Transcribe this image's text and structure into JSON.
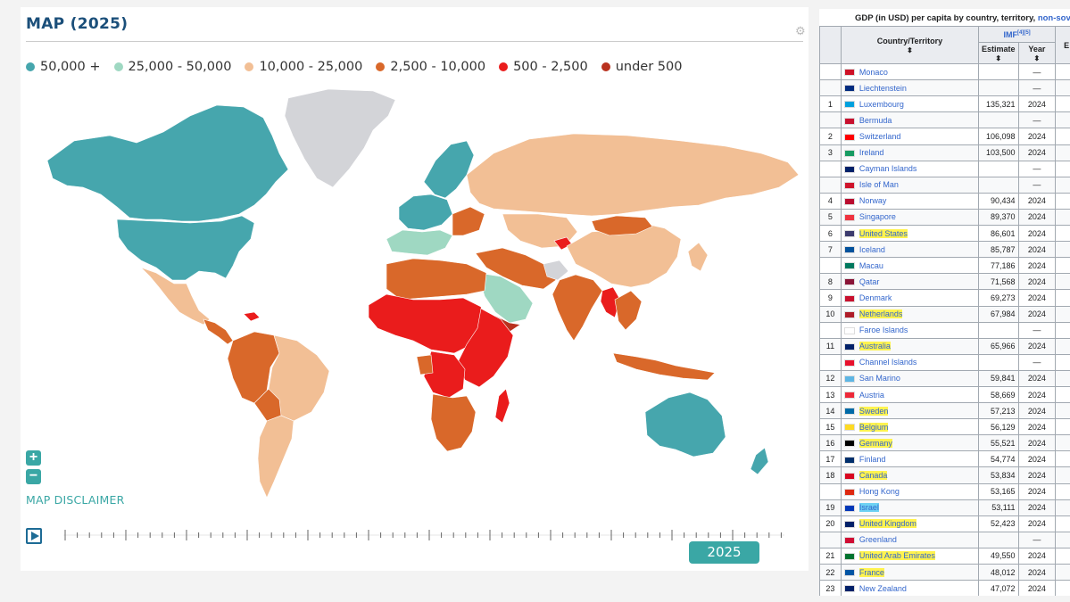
{
  "map": {
    "title": "MAP (2025)",
    "legend": [
      {
        "label": "50,000 +",
        "color": "#46a6ad"
      },
      {
        "label": "25,000 - 50,000",
        "color": "#9fd8c2"
      },
      {
        "label": "10,000 - 25,000",
        "color": "#f2bf95"
      },
      {
        "label": "2,500 - 10,000",
        "color": "#d9682a"
      },
      {
        "label": "500 - 2,500",
        "color": "#ea1c1c"
      },
      {
        "label": "under 500",
        "color": "#b9311e"
      }
    ],
    "no_data_color": "#d3d4d8",
    "zoom_in": "+",
    "zoom_out": "−",
    "disclaimer": "MAP DISCLAIMER",
    "year": "2025"
  },
  "wiki": {
    "caption_prefix": "GDP (in USD) per capita by country, territory,",
    "caption_link": "non-sover",
    "header_source": "IMF",
    "header_source_ref": "[4][5]",
    "col_country": "Country/Territory",
    "col_estimate": "Estimate",
    "col_year": "Year",
    "col_extra": "E",
    "rows": [
      {
        "rank": "",
        "country": "Monaco",
        "estimate": "",
        "year": "—",
        "flag": "#ce1126"
      },
      {
        "rank": "",
        "country": "Liechtenstein",
        "estimate": "",
        "year": "—",
        "flag": "#002b7f"
      },
      {
        "rank": "1",
        "country": "Luxembourg",
        "estimate": "135,321",
        "year": "2024",
        "flag": "#00a1de"
      },
      {
        "rank": "",
        "country": "Bermuda",
        "estimate": "",
        "year": "—",
        "flag": "#c8102e"
      },
      {
        "rank": "2",
        "country": "Switzerland",
        "estimate": "106,098",
        "year": "2024",
        "flag": "#ff0000"
      },
      {
        "rank": "3",
        "country": "Ireland",
        "estimate": "103,500",
        "year": "2024",
        "flag": "#169b62"
      },
      {
        "rank": "",
        "country": "Cayman Islands",
        "estimate": "",
        "year": "—",
        "flag": "#012169"
      },
      {
        "rank": "",
        "country": "Isle of Man",
        "estimate": "",
        "year": "—",
        "flag": "#cf142b"
      },
      {
        "rank": "4",
        "country": "Norway",
        "estimate": "90,434",
        "year": "2024",
        "flag": "#ba0c2f"
      },
      {
        "rank": "5",
        "country": "Singapore",
        "estimate": "89,370",
        "year": "2024",
        "flag": "#ef3340"
      },
      {
        "rank": "6",
        "country": "United States",
        "estimate": "86,601",
        "year": "2024",
        "flag": "#3c3b6e"
      },
      {
        "rank": "7",
        "country": "Iceland",
        "estimate": "85,787",
        "year": "2024",
        "flag": "#02529c"
      },
      {
        "rank": "",
        "country": "Macau",
        "estimate": "77,186",
        "year": "2024",
        "flag": "#00785e"
      },
      {
        "rank": "8",
        "country": "Qatar",
        "estimate": "71,568",
        "year": "2024",
        "flag": "#8a1538"
      },
      {
        "rank": "9",
        "country": "Denmark",
        "estimate": "69,273",
        "year": "2024",
        "flag": "#c8102e"
      },
      {
        "rank": "10",
        "country": "Netherlands",
        "estimate": "67,984",
        "year": "2024",
        "flag": "#ae1c28"
      },
      {
        "rank": "",
        "country": "Faroe Islands",
        "estimate": "",
        "year": "—",
        "flag": "#ffffff"
      },
      {
        "rank": "11",
        "country": "Australia",
        "estimate": "65,966",
        "year": "2024",
        "flag": "#012169"
      },
      {
        "rank": "",
        "country": "Channel Islands",
        "estimate": "",
        "year": "—",
        "flag": "#e8112d"
      },
      {
        "rank": "12",
        "country": "San Marino",
        "estimate": "59,841",
        "year": "2024",
        "flag": "#5eb6e4"
      },
      {
        "rank": "13",
        "country": "Austria",
        "estimate": "58,669",
        "year": "2024",
        "flag": "#ed2939"
      },
      {
        "rank": "14",
        "country": "Sweden",
        "estimate": "57,213",
        "year": "2024",
        "flag": "#006aa7"
      },
      {
        "rank": "15",
        "country": "Belgium",
        "estimate": "56,129",
        "year": "2024",
        "flag": "#fdda24"
      },
      {
        "rank": "16",
        "country": "Germany",
        "estimate": "55,521",
        "year": "2024",
        "flag": "#000000"
      },
      {
        "rank": "17",
        "country": "Finland",
        "estimate": "54,774",
        "year": "2024",
        "flag": "#002f6c"
      },
      {
        "rank": "18",
        "country": "Canada",
        "estimate": "53,834",
        "year": "2024",
        "flag": "#d80621"
      },
      {
        "rank": "",
        "country": "Hong Kong",
        "estimate": "53,165",
        "year": "2024",
        "flag": "#de2910"
      },
      {
        "rank": "19",
        "country": "Israel",
        "estimate": "53,111",
        "year": "2024",
        "flag": "#0038b8"
      },
      {
        "rank": "20",
        "country": "United Kingdom",
        "estimate": "52,423",
        "year": "2024",
        "flag": "#012169"
      },
      {
        "rank": "",
        "country": "Greenland",
        "estimate": "",
        "year": "—",
        "flag": "#d00c33"
      },
      {
        "rank": "21",
        "country": "United Arab Emirates",
        "estimate": "49,550",
        "year": "2024",
        "flag": "#00732f"
      },
      {
        "rank": "22",
        "country": "France",
        "estimate": "48,012",
        "year": "2024",
        "flag": "#0055a4"
      },
      {
        "rank": "23",
        "country": "New Zealand",
        "estimate": "47,072",
        "year": "2024",
        "flag": "#012169"
      }
    ],
    "highlighted_yellow": [
      "United States",
      "Netherlands",
      "Australia",
      "Sweden",
      "Belgium",
      "Germany",
      "Canada",
      "United Kingdom",
      "United Arab Emirates",
      "France"
    ],
    "highlighted_blue": [
      "Israel"
    ]
  }
}
